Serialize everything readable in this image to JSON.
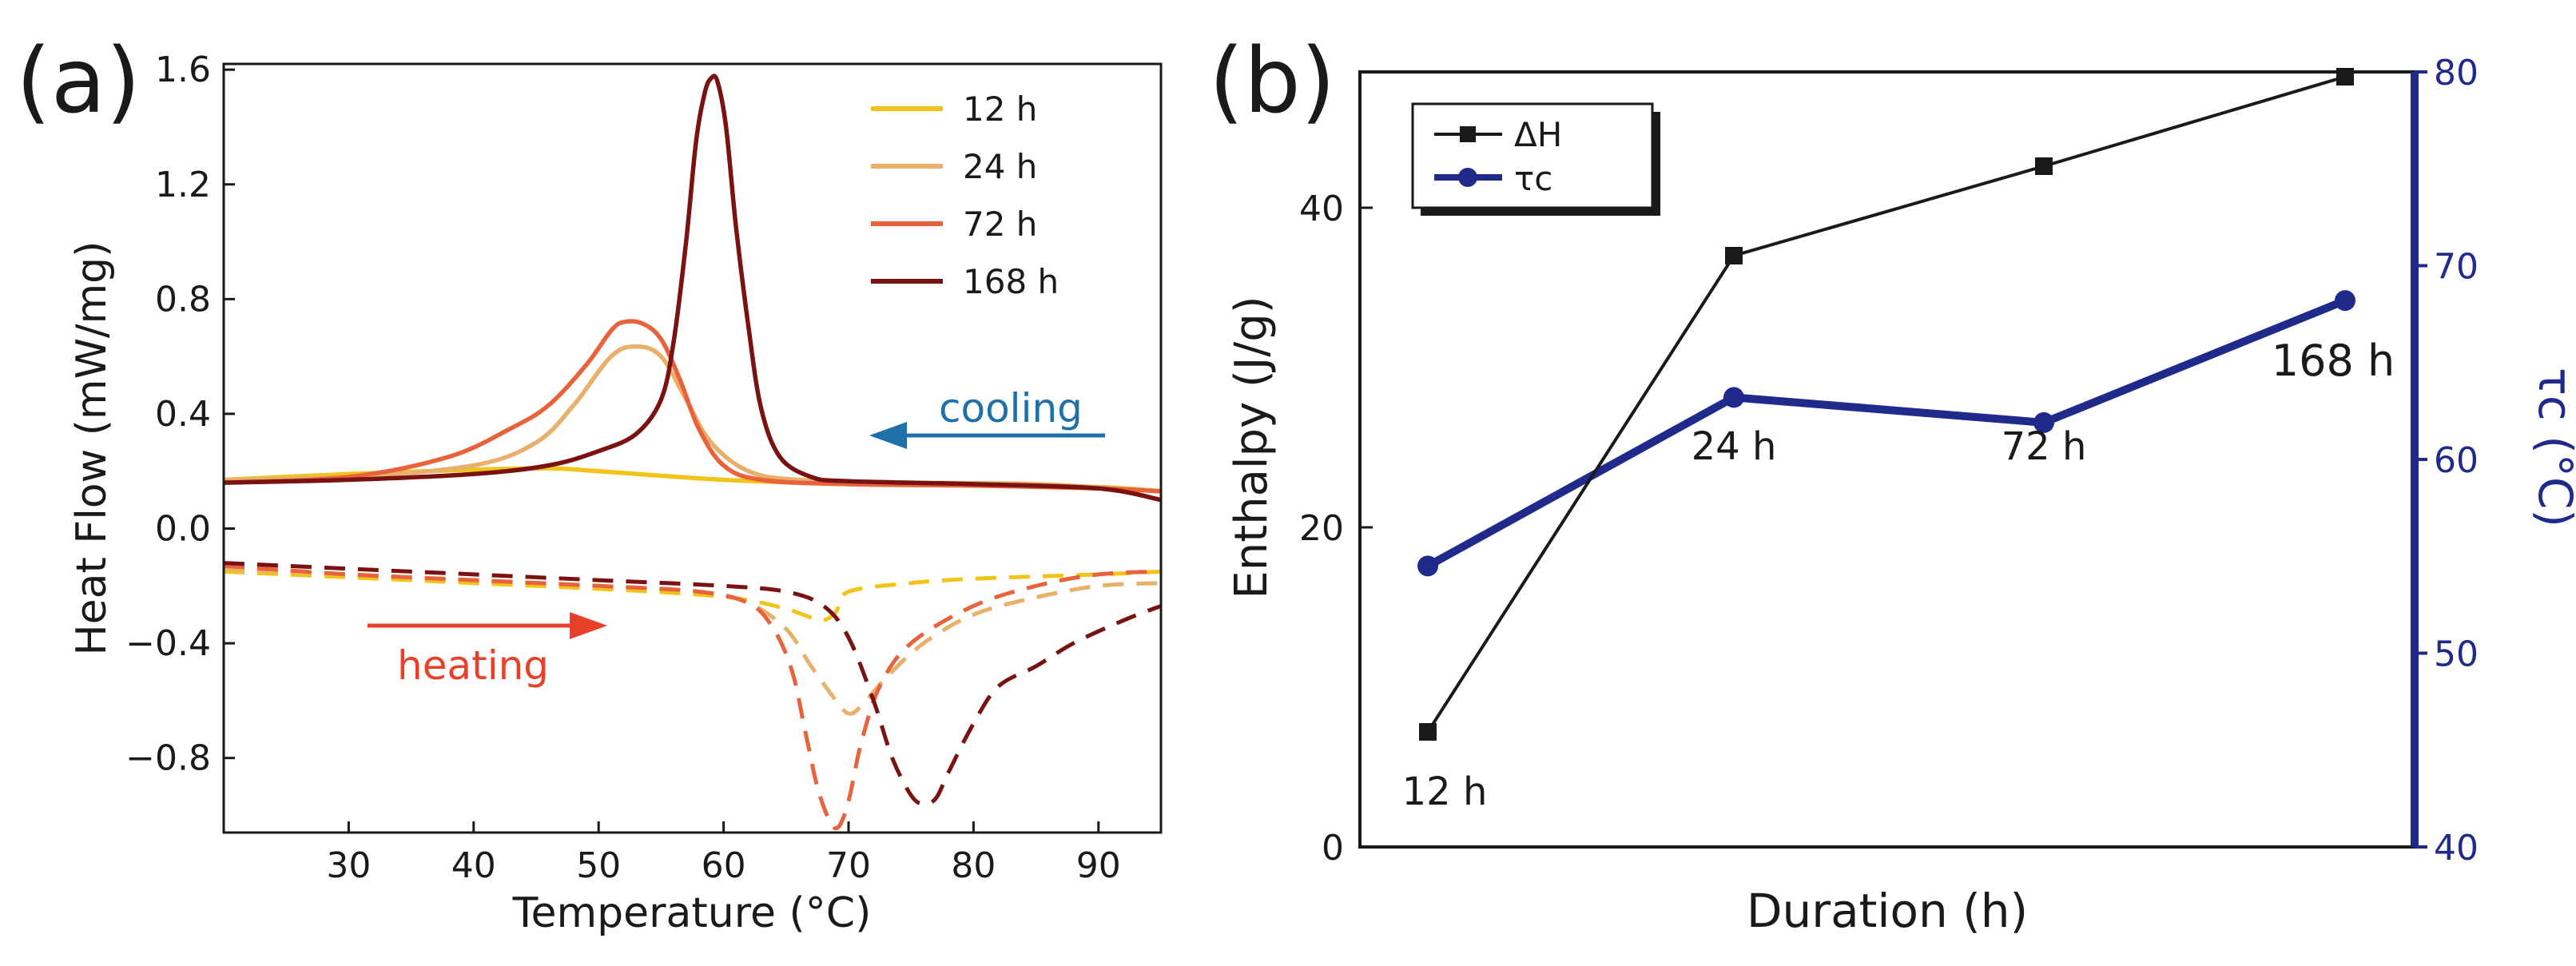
{
  "chart_data": [
    {
      "panel_label": "(a)",
      "type": "line",
      "xlabel": "Temperature (°C)",
      "ylabel": "Heat Flow (mW/mg)",
      "xlim": [
        20,
        95
      ],
      "ylim": [
        -1.06,
        1.62
      ],
      "x_ticks": [
        30,
        40,
        50,
        60,
        70,
        80,
        90
      ],
      "y_ticks": [
        -0.8,
        -0.4,
        0.0,
        0.4,
        0.8,
        1.2,
        1.6
      ],
      "y_tick_labels": [
        "−0.8",
        "−0.4",
        "0.0",
        "0.4",
        "0.8",
        "1.2",
        "1.6"
      ],
      "grid": false,
      "legend_position": "top-right",
      "series": [
        {
          "name": "12 h",
          "color": "#f0c419",
          "cooling": [
            [
              20,
              0.17
            ],
            [
              30,
              0.19
            ],
            [
              40,
              0.205
            ],
            [
              46,
              0.21
            ],
            [
              50,
              0.2
            ],
            [
              60,
              0.17
            ],
            [
              70,
              0.155
            ],
            [
              80,
              0.15
            ],
            [
              90,
              0.145
            ],
            [
              95,
              0.13
            ]
          ],
          "heating": [
            [
              20,
              -0.15
            ],
            [
              30,
              -0.17
            ],
            [
              40,
              -0.19
            ],
            [
              50,
              -0.21
            ],
            [
              58,
              -0.23
            ],
            [
              62,
              -0.25
            ],
            [
              65,
              -0.28
            ],
            [
              67,
              -0.31
            ],
            [
              68,
              -0.32
            ],
            [
              69,
              -0.29
            ],
            [
              70,
              -0.22
            ],
            [
              75,
              -0.19
            ],
            [
              80,
              -0.175
            ],
            [
              90,
              -0.16
            ],
            [
              95,
              -0.15
            ]
          ]
        },
        {
          "name": "24 h",
          "color": "#e8b06a",
          "cooling": [
            [
              20,
              0.17
            ],
            [
              30,
              0.18
            ],
            [
              40,
              0.22
            ],
            [
              45,
              0.3
            ],
            [
              48,
              0.43
            ],
            [
              51,
              0.6
            ],
            [
              53,
              0.635
            ],
            [
              55,
              0.6
            ],
            [
              57,
              0.45
            ],
            [
              59,
              0.3
            ],
            [
              62,
              0.2
            ],
            [
              66,
              0.17
            ],
            [
              75,
              0.16
            ],
            [
              85,
              0.155
            ],
            [
              95,
              0.13
            ]
          ],
          "heating": [
            [
              20,
              -0.14
            ],
            [
              30,
              -0.16
            ],
            [
              40,
              -0.18
            ],
            [
              50,
              -0.2
            ],
            [
              58,
              -0.22
            ],
            [
              62,
              -0.26
            ],
            [
              65,
              -0.35
            ],
            [
              67,
              -0.48
            ],
            [
              69,
              -0.6
            ],
            [
              70,
              -0.645
            ],
            [
              71,
              -0.62
            ],
            [
              73,
              -0.52
            ],
            [
              76,
              -0.4
            ],
            [
              80,
              -0.3
            ],
            [
              85,
              -0.24
            ],
            [
              90,
              -0.2
            ],
            [
              95,
              -0.19
            ]
          ]
        },
        {
          "name": "72 h",
          "color": "#e8633c",
          "cooling": [
            [
              20,
              0.16
            ],
            [
              30,
              0.18
            ],
            [
              38,
              0.25
            ],
            [
              43,
              0.35
            ],
            [
              46,
              0.43
            ],
            [
              49,
              0.57
            ],
            [
              51,
              0.69
            ],
            [
              52,
              0.72
            ],
            [
              53.5,
              0.715
            ],
            [
              55,
              0.66
            ],
            [
              56.5,
              0.52
            ],
            [
              58,
              0.35
            ],
            [
              60,
              0.22
            ],
            [
              63,
              0.17
            ],
            [
              70,
              0.155
            ],
            [
              80,
              0.15
            ],
            [
              90,
              0.14
            ],
            [
              95,
              0.13
            ]
          ],
          "heating": [
            [
              20,
              -0.13
            ],
            [
              30,
              -0.16
            ],
            [
              40,
              -0.18
            ],
            [
              50,
              -0.2
            ],
            [
              58,
              -0.22
            ],
            [
              62,
              -0.26
            ],
            [
              64,
              -0.35
            ],
            [
              65.5,
              -0.5
            ],
            [
              66.5,
              -0.7
            ],
            [
              67.5,
              -0.9
            ],
            [
              68.5,
              -1.02
            ],
            [
              69.2,
              -1.04
            ],
            [
              70,
              -0.95
            ],
            [
              71,
              -0.75
            ],
            [
              72.5,
              -0.55
            ],
            [
              75,
              -0.4
            ],
            [
              80,
              -0.27
            ],
            [
              85,
              -0.2
            ],
            [
              90,
              -0.16
            ],
            [
              95,
              -0.15
            ]
          ]
        },
        {
          "name": "168 h",
          "color": "#7a1212",
          "cooling": [
            [
              20,
              0.16
            ],
            [
              30,
              0.17
            ],
            [
              40,
              0.19
            ],
            [
              46,
              0.22
            ],
            [
              50,
              0.27
            ],
            [
              53,
              0.33
            ],
            [
              55,
              0.45
            ],
            [
              56,
              0.65
            ],
            [
              57,
              1.0
            ],
            [
              57.8,
              1.35
            ],
            [
              58.5,
              1.52
            ],
            [
              59,
              1.57
            ],
            [
              59.5,
              1.56
            ],
            [
              60.2,
              1.4
            ],
            [
              61,
              1.05
            ],
            [
              62,
              0.7
            ],
            [
              63,
              0.42
            ],
            [
              64.5,
              0.25
            ],
            [
              67,
              0.18
            ],
            [
              70,
              0.165
            ],
            [
              80,
              0.155
            ],
            [
              90,
              0.14
            ],
            [
              95,
              0.1
            ]
          ],
          "heating": [
            [
              20,
              -0.12
            ],
            [
              30,
              -0.14
            ],
            [
              40,
              -0.16
            ],
            [
              50,
              -0.18
            ],
            [
              60,
              -0.2
            ],
            [
              65,
              -0.22
            ],
            [
              68,
              -0.27
            ],
            [
              70,
              -0.38
            ],
            [
              72,
              -0.6
            ],
            [
              73.5,
              -0.8
            ],
            [
              75,
              -0.93
            ],
            [
              76,
              -0.96
            ],
            [
              77,
              -0.94
            ],
            [
              78,
              -0.85
            ],
            [
              80,
              -0.68
            ],
            [
              82,
              -0.55
            ],
            [
              85,
              -0.48
            ],
            [
              88,
              -0.4
            ],
            [
              92,
              -0.32
            ],
            [
              95,
              -0.27
            ]
          ]
        }
      ],
      "annotations": [
        {
          "text": "cooling",
          "color": "#1f6fa8",
          "direction": "left"
        },
        {
          "text": "heating",
          "color": "#e8402a",
          "direction": "right"
        }
      ]
    },
    {
      "panel_label": "(b)",
      "type": "line",
      "xlabel": "Duration (h)",
      "ylabel_left": "Enthalpy (J/g)",
      "ylabel_right": "τc (°C)",
      "categories": [
        "12 h",
        "24 h",
        "72 h",
        "168 h"
      ],
      "ylim_left": [
        0,
        48.5
      ],
      "y_ticks_left": [
        0,
        20,
        40
      ],
      "ylim_right": [
        40,
        80
      ],
      "y_ticks_right": [
        40,
        50,
        60,
        70,
        80
      ],
      "grid": false,
      "legend_position": "top-left",
      "series": [
        {
          "name": "ΔH",
          "axis": "left",
          "color": "#1a1a1a",
          "marker": "square",
          "values": [
            7.2,
            37.0,
            42.6,
            48.2
          ]
        },
        {
          "name": "τc",
          "axis": "right",
          "color": "#1f2a8a",
          "marker": "circle",
          "values": [
            54.5,
            63.2,
            61.9,
            68.2
          ]
        }
      ]
    }
  ]
}
